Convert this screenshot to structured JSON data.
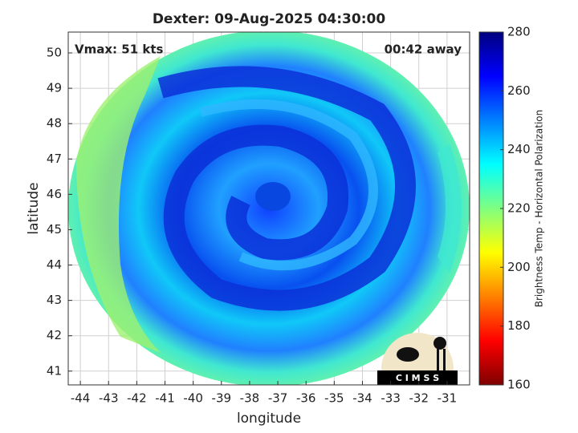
{
  "chart_data": {
    "type": "map",
    "title": "Dexter: 09-Aug-2025 04:30:00",
    "annotations": [
      "Vmax: 51 kts",
      "00:42 away"
    ],
    "xlabel": "longitude",
    "ylabel": "latitude",
    "xlim": [
      -44.43,
      -30.2
    ],
    "ylim": [
      40.61,
      50.59
    ],
    "xticks": [
      -44,
      -43,
      -42,
      -41,
      -40,
      -39,
      -38,
      -37,
      -36,
      -35,
      -34,
      -33,
      -32,
      -31
    ],
    "yticks": [
      41,
      42,
      43,
      44,
      45,
      46,
      47,
      48,
      49,
      50
    ],
    "grid": true,
    "colorbar": {
      "label": "Brightness Temp - Horizontal Polarization",
      "clim": [
        160,
        280
      ],
      "ticks": [
        160,
        180,
        200,
        220,
        240,
        260,
        280
      ],
      "colormap": [
        "#7f0000",
        "#ff0000",
        "#ff8000",
        "#ffff00",
        "#80ff80",
        "#00ffff",
        "#0080ff",
        "#0000ff",
        "#00007f"
      ]
    },
    "logo": "C I M S S"
  }
}
